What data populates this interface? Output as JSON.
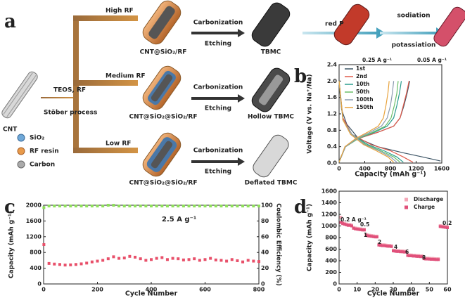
{
  "schematic": {
    "panel": "a",
    "precursor": "CNT",
    "step": [
      "TEOS, RF",
      "Stöber process"
    ],
    "branches": [
      {
        "rf": "High RF",
        "intermediate": "CNT@SiO₂/RF",
        "process": [
          "Carbonization",
          "Etching"
        ],
        "product": "TBMC"
      },
      {
        "rf": "Medium RF",
        "intermediate": "CNT@SiO₂@SiO₂/RF",
        "process": [
          "Carbonization",
          "Etching"
        ],
        "product": "Hollow TBMC"
      },
      {
        "rf": "Low RF",
        "intermediate": "CNT@SiO₂@SiO₂/RF",
        "process": [
          "Carbonization",
          "Etching"
        ],
        "product": "Deflated TBMC"
      }
    ],
    "loading": "red P",
    "reaction": [
      "sodiation",
      "potassiation"
    ],
    "legend": [
      "SiO₂",
      "RF resin",
      "Carbon"
    ]
  },
  "chart_data": [
    {
      "type": "line",
      "panel": "b",
      "xlabel": "Capacity (mAh g⁻¹)",
      "ylabel": "Voltage (V vs. Na⁺/Na)",
      "xlim": [
        0,
        1600
      ],
      "xticks": [
        0,
        400,
        800,
        1200,
        1600
      ],
      "ylim": [
        0,
        2.4
      ],
      "yticks": [
        {
          "value": 0,
          "label": "0.0"
        },
        0.4,
        0.8,
        1.2,
        1.6,
        {
          "value": 2,
          "label": "2.0"
        },
        2.4
      ],
      "annotations": [
        "0.25 A g⁻¹",
        "0.05 A g⁻¹"
      ],
      "legend": "upper left",
      "series": [
        {
          "name": "1st",
          "color": "#3d5566",
          "x": [
            0,
            40,
            120,
            300,
            600,
            1000,
            1300,
            1580,
            null,
            0,
            100,
            300,
            600,
            850,
            950,
            1010,
            1060,
            1100
          ],
          "values": [
            1.95,
            1.3,
            0.95,
            0.6,
            0.4,
            0.25,
            0.15,
            0.05,
            null,
            0.05,
            0.4,
            0.6,
            0.75,
            0.9,
            1.1,
            1.4,
            1.7,
            2.0
          ]
        },
        {
          "name": "2nd",
          "color": "#e05a4a",
          "x": [
            0,
            60,
            200,
            500,
            800,
            1000,
            1150,
            null,
            0,
            100,
            300,
            600,
            850,
            950,
            1000,
            1050,
            1090
          ],
          "values": [
            2.0,
            1.1,
            0.7,
            0.45,
            0.3,
            0.15,
            0.02,
            null,
            0.02,
            0.4,
            0.6,
            0.75,
            0.9,
            1.1,
            1.4,
            1.7,
            2.0
          ]
        },
        {
          "name": "10th",
          "color": "#2a9d8f",
          "x": [
            0,
            60,
            200,
            450,
            700,
            900,
            1000,
            null,
            0,
            100,
            300,
            550,
            750,
            850,
            900,
            940,
            970
          ],
          "values": [
            2.0,
            1.05,
            0.7,
            0.45,
            0.3,
            0.15,
            0.02,
            null,
            0.02,
            0.4,
            0.6,
            0.75,
            0.9,
            1.1,
            1.4,
            1.7,
            2.0
          ]
        },
        {
          "name": "50th",
          "color": "#6abf69",
          "x": [
            0,
            60,
            200,
            420,
            650,
            850,
            950,
            null,
            0,
            100,
            300,
            520,
            720,
            810,
            860,
            900,
            920
          ],
          "values": [
            2.0,
            1.05,
            0.7,
            0.45,
            0.3,
            0.15,
            0.02,
            null,
            0.02,
            0.4,
            0.6,
            0.75,
            0.9,
            1.1,
            1.4,
            1.7,
            2.0
          ]
        },
        {
          "name": "100th",
          "color": "#8a9bb0",
          "x": [
            0,
            60,
            200,
            400,
            620,
            800,
            900,
            null,
            0,
            100,
            280,
            480,
            660,
            750,
            800,
            830,
            850
          ],
          "values": [
            2.0,
            1.05,
            0.7,
            0.45,
            0.3,
            0.15,
            0.02,
            null,
            0.02,
            0.4,
            0.6,
            0.75,
            0.9,
            1.1,
            1.4,
            1.7,
            2.0
          ]
        },
        {
          "name": "150th",
          "color": "#e8a33d",
          "x": [
            0,
            60,
            180,
            380,
            580,
            760,
            850,
            null,
            0,
            90,
            260,
            440,
            610,
            690,
            730,
            760,
            780
          ],
          "values": [
            2.0,
            1.05,
            0.7,
            0.45,
            0.3,
            0.15,
            0.02,
            null,
            0.02,
            0.4,
            0.6,
            0.75,
            0.9,
            1.1,
            1.4,
            1.7,
            2.0
          ]
        }
      ]
    },
    {
      "type": "scatter",
      "panel": "c",
      "xlabel": "Cycle Number",
      "ylabel": "Capacity (mAh g⁻¹)",
      "y2label": "Coulombic Efficiency (%)",
      "xlim": [
        0,
        800
      ],
      "xticks": [
        0,
        200,
        400,
        600,
        800
      ],
      "ylim": [
        0,
        2000
      ],
      "yticks": [
        0,
        400,
        800,
        1200,
        1600,
        2000
      ],
      "y2lim": [
        0,
        100
      ],
      "y2ticks": [
        0,
        20,
        40,
        60,
        80,
        100
      ],
      "annotations": [
        "2.5 A g⁻¹"
      ],
      "series": [
        {
          "color": "#e8506a",
          "x": [
            1,
            20,
            40,
            60,
            80,
            100,
            120,
            140,
            160,
            180,
            200,
            220,
            240,
            260,
            280,
            300,
            320,
            340,
            360,
            380,
            400,
            420,
            440,
            460,
            480,
            500,
            520,
            540,
            560,
            580,
            600,
            620,
            640,
            660,
            680,
            700,
            720,
            740,
            760,
            780,
            800
          ],
          "values": [
            1000,
            520,
            505,
            495,
            480,
            485,
            495,
            510,
            530,
            560,
            580,
            600,
            640,
            690,
            650,
            660,
            700,
            680,
            640,
            600,
            620,
            650,
            670,
            620,
            650,
            640,
            610,
            620,
            640,
            600,
            620,
            650,
            610,
            600,
            580,
            620,
            590,
            560,
            600,
            580,
            570
          ]
        },
        {
          "color": "#8ee05a",
          "axis": "y2",
          "x": [
            1,
            20,
            40,
            60,
            80,
            100,
            120,
            140,
            160,
            180,
            200,
            220,
            240,
            260,
            280,
            300,
            320,
            340,
            360,
            380,
            400,
            420,
            440,
            460,
            480,
            500,
            520,
            540,
            560,
            580,
            600,
            620,
            640,
            660,
            680,
            700,
            720,
            740,
            760,
            780,
            800
          ],
          "values": [
            97,
            99,
            99,
            99,
            99,
            99,
            99,
            99,
            99,
            99,
            99,
            99,
            100,
            100,
            99,
            99,
            99,
            99,
            99,
            99,
            99,
            99,
            99,
            99,
            99,
            99,
            99,
            99,
            99,
            99,
            99,
            99,
            99,
            99,
            99,
            99,
            99,
            99,
            99,
            99,
            99
          ]
        }
      ]
    },
    {
      "type": "scatter",
      "panel": "d",
      "xlabel": "Cycle Number",
      "ylabel": "Capacity (mAh g⁻¹)",
      "xlim": [
        0,
        60
      ],
      "xticks": [
        0,
        10,
        20,
        30,
        40,
        50,
        60
      ],
      "ylim": [
        0,
        1600
      ],
      "yticks": [
        0,
        200,
        400,
        600,
        800,
        1000,
        1200,
        1400,
        1600
      ],
      "annotations": [
        "0.2 A g⁻¹",
        "0.5",
        "1",
        "2",
        "4",
        "6",
        "8",
        "0.2"
      ],
      "legend": "upper right",
      "series": [
        {
          "name": "Discharge",
          "color": "#f4a6b6",
          "x": [
            1,
            2,
            3,
            4,
            5,
            6,
            7,
            8,
            9,
            10,
            11,
            12,
            13,
            14,
            15,
            16,
            17,
            18,
            19,
            20,
            21,
            22,
            23,
            24,
            25,
            26,
            27,
            28,
            29,
            30,
            31,
            32,
            33,
            34,
            35,
            36,
            37,
            38,
            39,
            40,
            41,
            42,
            43,
            44,
            45,
            46,
            47,
            48,
            49,
            50,
            51,
            52,
            53,
            54,
            55,
            56,
            57,
            58,
            59,
            60
          ],
          "values": [
            1150,
            1060,
            1045,
            1035,
            1025,
            1025,
            1015,
            975,
            965,
            960,
            955,
            950,
            945,
            945,
            855,
            845,
            840,
            835,
            830,
            825,
            825,
            685,
            680,
            675,
            675,
            670,
            665,
            665,
            660,
            585,
            580,
            575,
            575,
            570,
            570,
            565,
            565,
            505,
            500,
            500,
            495,
            495,
            490,
            490,
            485,
            485,
            450,
            445,
            445,
            443,
            440,
            440,
            437,
            435,
            435,
            1005,
            1000,
            995,
            990,
            985
          ]
        },
        {
          "name": "Charge",
          "color": "#e0507a",
          "x": [
            1,
            2,
            3,
            4,
            5,
            6,
            7,
            8,
            9,
            10,
            11,
            12,
            13,
            14,
            15,
            16,
            17,
            18,
            19,
            20,
            21,
            22,
            23,
            24,
            25,
            26,
            27,
            28,
            29,
            30,
            31,
            32,
            33,
            34,
            35,
            36,
            37,
            38,
            39,
            40,
            41,
            42,
            43,
            44,
            45,
            46,
            47,
            48,
            49,
            50,
            51,
            52,
            53,
            54,
            55,
            56,
            57,
            58,
            59,
            60
          ],
          "values": [
            1060,
            1040,
            1030,
            1020,
            1010,
            1010,
            1000,
            960,
            950,
            945,
            940,
            935,
            930,
            930,
            840,
            830,
            825,
            820,
            815,
            810,
            810,
            670,
            665,
            660,
            660,
            655,
            650,
            650,
            645,
            570,
            565,
            560,
            560,
            555,
            555,
            550,
            550,
            490,
            485,
            485,
            480,
            480,
            475,
            475,
            470,
            470,
            435,
            430,
            430,
            428,
            425,
            425,
            422,
            420,
            420,
            990,
            985,
            980,
            975,
            970
          ]
        }
      ]
    }
  ]
}
